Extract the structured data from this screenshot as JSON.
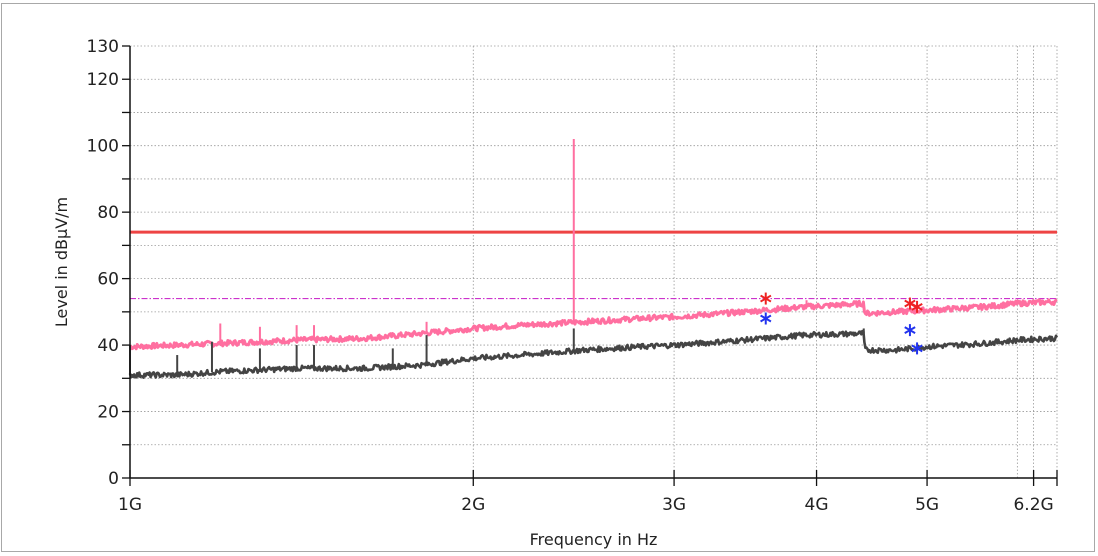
{
  "chart_data": {
    "type": "line",
    "xlabel": "Frequency in Hz",
    "ylabel": "Level in dBµV/m",
    "xscale": "log",
    "xlim": [
      1000000000,
      6500000000
    ],
    "ylim": [
      0,
      130
    ],
    "grid": true,
    "x_ticks": [
      {
        "value": 1000000000,
        "label": "1G"
      },
      {
        "value": 2000000000,
        "label": "2G"
      },
      {
        "value": 3000000000,
        "label": "3G"
      },
      {
        "value": 4000000000,
        "label": "4G"
      },
      {
        "value": 5000000000,
        "label": "5G"
      },
      {
        "value": 6200000000,
        "label": "6.2G"
      }
    ],
    "y_ticks": [
      {
        "value": 0,
        "label": "0"
      },
      {
        "value": 20,
        "label": "20"
      },
      {
        "value": 40,
        "label": "40"
      },
      {
        "value": 60,
        "label": "60"
      },
      {
        "value": 80,
        "label": "80"
      },
      {
        "value": 100,
        "label": "100"
      },
      {
        "value": 120,
        "label": "120"
      },
      {
        "value": 130,
        "label": "130"
      }
    ],
    "limit_lines": [
      {
        "level": 74,
        "color": "#ee4444",
        "style": "solid"
      },
      {
        "level": 54,
        "color": "#cc33cc",
        "style": "dash-dot"
      }
    ],
    "series": [
      {
        "color": "#ff6fa0",
        "x": [
          1000000000,
          1100000000,
          1200000000,
          1400000000,
          1600000000,
          1800000000,
          2000000000,
          2200000000,
          2500000000,
          2800000000,
          3000000000,
          3300000000,
          3600000000,
          3900000000,
          4400000000,
          4410000000,
          4700000000,
          5000000000,
          5300000000,
          5600000000,
          6000000000,
          6400000000
        ],
        "y": [
          39.5,
          40,
          40.5,
          41.5,
          42,
          43.5,
          45,
          46,
          47,
          48,
          48.5,
          49.5,
          50.5,
          51.5,
          52.5,
          49.5,
          50,
          50.5,
          51,
          51.5,
          52.5,
          53
        ],
        "spikes": [
          {
            "x": 2450000000,
            "y": 102
          },
          {
            "x": 1200000000,
            "y": 46.5
          },
          {
            "x": 1300000000,
            "y": 45.5
          },
          {
            "x": 1400000000,
            "y": 46
          },
          {
            "x": 1450000000,
            "y": 46
          },
          {
            "x": 1820000000,
            "y": 47
          },
          {
            "x": 3920000000,
            "y": 53.5
          }
        ]
      },
      {
        "color": "#444444",
        "x": [
          1000000000,
          1100000000,
          1200000000,
          1400000000,
          1600000000,
          1800000000,
          2000000000,
          2200000000,
          2500000000,
          2800000000,
          3000000000,
          3300000000,
          3600000000,
          3900000000,
          4400000000,
          4410000000,
          4700000000,
          5000000000,
          5300000000,
          5600000000,
          6000000000,
          6400000000
        ],
        "y": [
          31,
          31,
          32,
          33,
          33,
          34,
          36,
          37,
          38.5,
          39.5,
          40,
          41,
          42,
          43,
          43.5,
          38.5,
          38.5,
          39.5,
          40,
          40.5,
          41.5,
          42
        ],
        "spikes": [
          {
            "x": 1000000000,
            "y": 40
          },
          {
            "x": 1100000000,
            "y": 37
          },
          {
            "x": 1180000000,
            "y": 41
          },
          {
            "x": 1300000000,
            "y": 39
          },
          {
            "x": 1400000000,
            "y": 40
          },
          {
            "x": 1450000000,
            "y": 40
          },
          {
            "x": 1700000000,
            "y": 39
          },
          {
            "x": 1820000000,
            "y": 43
          },
          {
            "x": 2450000000,
            "y": 45
          },
          {
            "x": 4400000000,
            "y": 45
          }
        ]
      }
    ],
    "markers": [
      {
        "x": 3610000000,
        "y": 54,
        "color": "#ee2222"
      },
      {
        "x": 4830000000,
        "y": 52.5,
        "color": "#ee2222"
      },
      {
        "x": 4900000000,
        "y": 51.5,
        "color": "#ee2222"
      },
      {
        "x": 3610000000,
        "y": 48,
        "color": "#2233ee"
      },
      {
        "x": 4830000000,
        "y": 44.5,
        "color": "#2233ee"
      },
      {
        "x": 4900000000,
        "y": 39,
        "color": "#2233ee"
      }
    ]
  }
}
